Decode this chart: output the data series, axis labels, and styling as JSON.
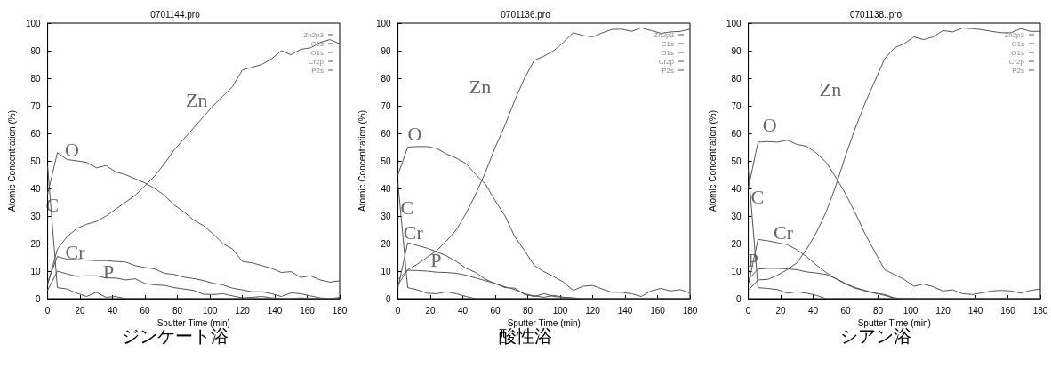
{
  "chart_data": [
    {
      "type": "line",
      "title": "0701144.pro",
      "xlabel": "Sputter Time (min)",
      "ylabel": "Atomic Concentration (%)",
      "xlim": [
        0,
        180
      ],
      "xticks": [
        0,
        20,
        40,
        60,
        80,
        100,
        120,
        140,
        160,
        180
      ],
      "ylim": [
        0,
        100
      ],
      "yticks": [
        0,
        10,
        20,
        30,
        40,
        50,
        60,
        70,
        80,
        90,
        100
      ],
      "grid": false,
      "legend": "top right",
      "marker": "none",
      "line_style": "solid",
      "x": [
        0,
        6,
        12,
        18,
        24,
        30,
        36,
        42,
        48,
        54,
        60,
        66,
        72,
        78,
        84,
        90,
        96,
        102,
        108,
        114,
        120,
        126,
        132,
        138,
        144,
        150,
        156,
        162,
        168,
        174,
        180
      ],
      "series": [
        {
          "name": "Zn2p3",
          "color": "#555555",
          "values": [
            5,
            18,
            22.5,
            25.5,
            27,
            28,
            30,
            32.5,
            35,
            37.5,
            41,
            44.5,
            49,
            54,
            58,
            62,
            66,
            70,
            73.5,
            77,
            83,
            84,
            85,
            87,
            90,
            88.5,
            90.5,
            91,
            93,
            94,
            92.5
          ]
        },
        {
          "name": "C1s",
          "color": "#555555",
          "values": [
            48,
            4,
            3.5,
            2,
            0.8,
            2.3,
            0.5,
            0.8,
            0,
            0,
            0,
            0,
            0,
            0,
            0,
            0,
            0,
            0,
            0,
            0,
            0,
            0,
            0,
            0,
            0,
            0,
            0,
            0,
            0,
            0,
            0
          ]
        },
        {
          "name": "O1s",
          "color": "#555555",
          "values": [
            38,
            53,
            50.5,
            50,
            49.5,
            47.5,
            48.3,
            46,
            45,
            43.5,
            42,
            40,
            37.5,
            34,
            31.5,
            28.5,
            26.5,
            23.5,
            20,
            18,
            13.5,
            13,
            12,
            11,
            9.5,
            9.8,
            7.7,
            8.3,
            6.8,
            6,
            6.5
          ]
        },
        {
          "name": "Cr2p",
          "color": "#555555",
          "values": [
            6,
            15.3,
            14.3,
            14.2,
            14,
            13.8,
            13.8,
            13.5,
            13.3,
            12,
            11.3,
            10.8,
            9.2,
            8.8,
            7.8,
            7.3,
            6.6,
            5.6,
            5,
            3.8,
            3.2,
            2.5,
            2.5,
            1.8,
            0.8,
            2.1,
            1.8,
            1,
            0.3,
            0,
            0.5
          ]
        },
        {
          "name": "P2s",
          "color": "#555555",
          "values": [
            3,
            10,
            9,
            8.1,
            8.3,
            8.3,
            7.5,
            7.5,
            6.8,
            7.2,
            5.5,
            5,
            4.8,
            4,
            3.5,
            3,
            1.6,
            1.5,
            1.8,
            1,
            0.3,
            0.5,
            0.8,
            0.3,
            0,
            0,
            0.3,
            0,
            0,
            0,
            0
          ]
        }
      ],
      "annotations": [
        "ジンケート浴",
        "Zn",
        "O",
        "C",
        "Cr",
        "P"
      ]
    },
    {
      "type": "line",
      "title": "0701136.pro",
      "xlabel": "Sputter Time (min)",
      "ylabel": "Atomic Concentration (%)",
      "xlim": [
        0,
        180
      ],
      "xticks": [
        0,
        20,
        40,
        60,
        80,
        100,
        120,
        140,
        160,
        180
      ],
      "ylim": [
        0,
        100
      ],
      "yticks": [
        0,
        10,
        20,
        30,
        40,
        50,
        60,
        70,
        80,
        90,
        100
      ],
      "grid": false,
      "legend": "top right",
      "marker": "none",
      "line_style": "solid",
      "x": [
        0,
        6,
        12,
        18,
        24,
        30,
        36,
        42,
        48,
        54,
        60,
        66,
        72,
        78,
        84,
        90,
        96,
        102,
        108,
        114,
        120,
        126,
        132,
        138,
        144,
        150,
        156,
        162,
        168,
        174,
        180
      ],
      "series": [
        {
          "name": "Zn2p3",
          "color": "#555555",
          "values": [
            5,
            10.5,
            12.5,
            15,
            17.5,
            21,
            25,
            31,
            38,
            46,
            55,
            63,
            72,
            80,
            86.5,
            88,
            90,
            93,
            96.5,
            95.5,
            95,
            96.5,
            97.7,
            97.8,
            97,
            98.3,
            97.3,
            96.3,
            96.8,
            97,
            97.8
          ]
        },
        {
          "name": "C1s",
          "color": "#555555",
          "values": [
            42,
            4,
            3.2,
            2,
            1.8,
            2.5,
            1.8,
            0.8,
            0,
            0,
            0,
            0,
            0,
            0,
            0,
            0,
            0,
            0,
            0,
            0,
            0,
            0,
            0,
            0,
            0,
            0,
            0,
            0,
            0,
            0,
            0
          ]
        },
        {
          "name": "O1s",
          "color": "#555555",
          "values": [
            45,
            55,
            55.2,
            55.2,
            54.5,
            52.5,
            51,
            49,
            45,
            41.5,
            35.5,
            30,
            22.5,
            17.5,
            12,
            9.8,
            8,
            6,
            3,
            4.5,
            4.8,
            3.5,
            2.3,
            2.3,
            1.8,
            0.8,
            2.8,
            3.7,
            2.8,
            3.3,
            2
          ]
        },
        {
          "name": "Cr2p",
          "color": "#555555",
          "values": [
            4,
            20.3,
            19.3,
            18.3,
            17,
            15.5,
            13.5,
            11,
            9.5,
            7,
            5.5,
            4,
            3.8,
            1.5,
            0.8,
            1.8,
            0.8,
            0.5,
            0.3,
            0,
            0,
            0,
            0,
            0,
            0,
            0,
            0,
            0,
            0,
            0,
            0
          ]
        },
        {
          "name": "P2s",
          "color": "#555555",
          "values": [
            7,
            10.3,
            10.2,
            10,
            9.6,
            9.5,
            9.2,
            8.5,
            7.5,
            6.5,
            5.5,
            4.3,
            3.3,
            1.8,
            1,
            0.5,
            1.2,
            0.5,
            0.2,
            0,
            0,
            0,
            0,
            0,
            0,
            0,
            0,
            0,
            0,
            0,
            0
          ]
        }
      ],
      "annotations": [
        "酸性浴",
        "Zn",
        "O",
        "C",
        "Cr",
        "P"
      ]
    },
    {
      "type": "line",
      "title": "0701138..pro",
      "xlabel": "Sputter Time (min)",
      "ylabel": "Atomic Concentration (%)",
      "xlim": [
        0,
        180
      ],
      "xticks": [
        0,
        20,
        40,
        60,
        80,
        100,
        120,
        140,
        160,
        180
      ],
      "ylim": [
        0,
        100
      ],
      "yticks": [
        0,
        10,
        20,
        30,
        40,
        50,
        60,
        70,
        80,
        90,
        100
      ],
      "grid": false,
      "legend": "top right",
      "marker": "none",
      "line_style": "solid",
      "x": [
        0,
        6,
        12,
        18,
        24,
        30,
        36,
        42,
        48,
        54,
        60,
        66,
        72,
        78,
        84,
        90,
        96,
        102,
        108,
        114,
        120,
        126,
        132,
        138,
        144,
        150,
        156,
        162,
        168,
        174,
        180
      ],
      "series": [
        {
          "name": "Zn2p3",
          "color": "#555555",
          "values": [
            3,
            6.8,
            7,
            8.5,
            10.5,
            13,
            18,
            24,
            31.5,
            41,
            52,
            62,
            71,
            79,
            87,
            91,
            92.5,
            95,
            94,
            95,
            97.3,
            96.8,
            98.2,
            98,
            97.6,
            97,
            96.5,
            96.5,
            98,
            97,
            97
          ]
        },
        {
          "name": "C1s",
          "color": "#555555",
          "values": [
            47,
            4,
            3.7,
            3.3,
            2,
            2.5,
            2,
            1.2,
            0,
            0,
            0,
            0,
            0,
            0,
            0,
            0,
            0,
            0,
            0,
            0,
            0,
            0,
            0,
            0,
            0,
            0,
            0,
            0,
            0,
            0,
            0
          ]
        },
        {
          "name": "O1s",
          "color": "#555555",
          "values": [
            40,
            56.8,
            57,
            56.8,
            57.5,
            56,
            55.3,
            52.8,
            49.5,
            44,
            38,
            31,
            23.5,
            17,
            10.5,
            8.8,
            7,
            4.5,
            5.3,
            4.3,
            2.8,
            3.2,
            1.8,
            1.5,
            2.1,
            2.8,
            3,
            2.8,
            2,
            3,
            3.5
          ]
        },
        {
          "name": "Cr2p",
          "color": "#555555",
          "values": [
            5,
            21.5,
            21,
            20.3,
            19.6,
            17.8,
            15.2,
            12.2,
            9.5,
            7.2,
            5.3,
            3.8,
            2.8,
            2,
            1.5,
            0.3,
            0,
            0,
            0,
            0,
            0,
            0,
            0,
            0,
            0,
            0,
            0,
            0,
            0,
            0,
            0
          ]
        },
        {
          "name": "P2s",
          "color": "#555555",
          "values": [
            7,
            10.7,
            11,
            11,
            10.8,
            10.5,
            9.7,
            9.3,
            8.8,
            7.3,
            5.5,
            4,
            3,
            2,
            1.2,
            0.2,
            0,
            0,
            0,
            0,
            0,
            0,
            0,
            0,
            0,
            0,
            0,
            0,
            0,
            0,
            0
          ]
        }
      ],
      "annotations": [
        "シアン浴",
        "Zn",
        "O",
        "C",
        "Cr",
        "P"
      ]
    }
  ]
}
